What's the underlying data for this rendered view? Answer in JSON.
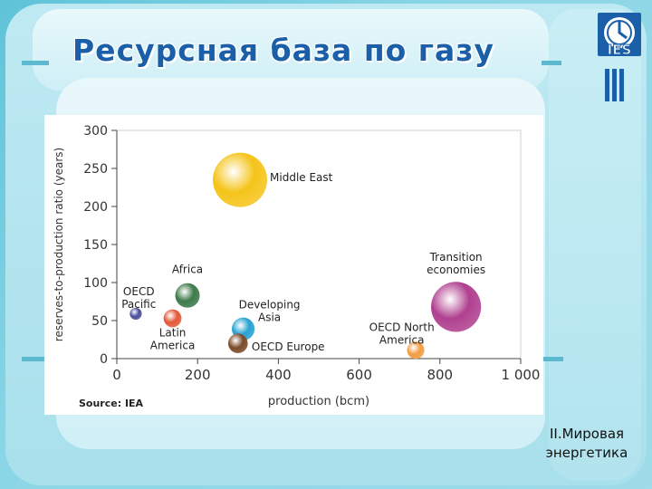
{
  "slide": {
    "title": "Ресурсная база по газу",
    "footer_line1": "II.Мировая",
    "footer_line2": "энергетика",
    "logo_text": "IES"
  },
  "chart_data": {
    "type": "scatter",
    "title": "",
    "xlabel": "production (bcm)",
    "ylabel": "reserves-to-production ratio (years)",
    "source": "Source: IEA",
    "xlim": [
      0,
      1000
    ],
    "ylim": [
      0,
      300
    ],
    "x_ticks": [
      0,
      200,
      400,
      600,
      800,
      1000
    ],
    "x_tick_labels": [
      "0",
      "200",
      "400",
      "600",
      "800",
      "1 000"
    ],
    "y_ticks": [
      0,
      50,
      100,
      150,
      200,
      250,
      300
    ],
    "y_tick_labels": [
      "0",
      "50",
      "100",
      "150",
      "200",
      "250",
      "300"
    ],
    "grid": false,
    "points": [
      {
        "name": "Middle East",
        "x": 305,
        "y": 235,
        "bubble": 1.0,
        "color": "#f5c41a"
      },
      {
        "name": "Transition economies",
        "x": 840,
        "y": 68,
        "bubble": 0.92,
        "color": "#b0408f"
      },
      {
        "name": "Africa",
        "x": 175,
        "y": 83,
        "bubble": 0.45,
        "color": "#3d7a4a"
      },
      {
        "name": "OECD Pacific",
        "x": 47,
        "y": 59,
        "bubble": 0.22,
        "color": "#4b4f9c"
      },
      {
        "name": "Latin America",
        "x": 138,
        "y": 53,
        "bubble": 0.33,
        "color": "#e25a3a"
      },
      {
        "name": "Developing Asia",
        "x": 313,
        "y": 39,
        "bubble": 0.42,
        "color": "#27a3d1"
      },
      {
        "name": "OECD Europe",
        "x": 300,
        "y": 20,
        "bubble": 0.36,
        "color": "#7a4b2a"
      },
      {
        "name": "OECD North America",
        "x": 740,
        "y": 11,
        "bubble": 0.32,
        "color": "#f39c43"
      }
    ],
    "label_lines": {
      "Middle East": [
        "Middle East"
      ],
      "Transition economies": [
        "Transition",
        "economies"
      ],
      "Africa": [
        "Africa"
      ],
      "OECD Pacific": [
        "OECD",
        "Pacific"
      ],
      "Latin America": [
        "Latin",
        "America"
      ],
      "Developing Asia": [
        "Developing",
        "Asia"
      ],
      "OECD Europe": [
        "OECD Europe"
      ],
      "OECD North America": [
        "OECD North",
        "America"
      ]
    }
  }
}
